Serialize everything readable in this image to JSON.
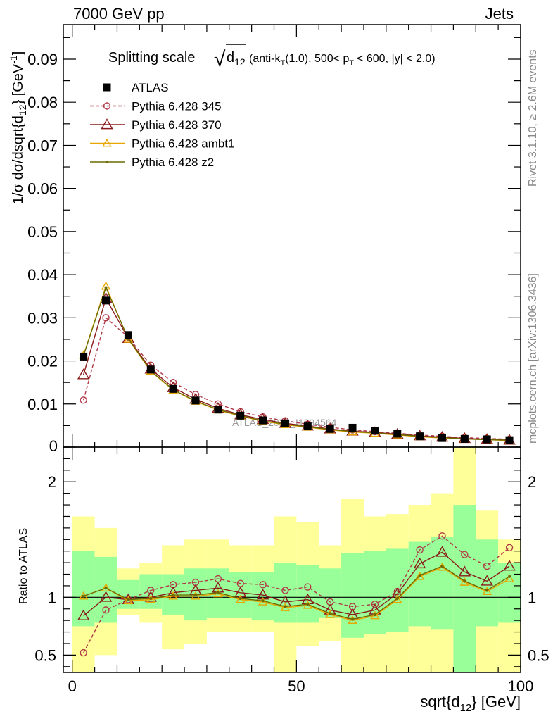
{
  "header": {
    "left": "7000 GeV pp",
    "right": "Jets"
  },
  "side_texts": {
    "top": "Rivet 3.1.10, ≥ 2.6M events",
    "bottom": "mcplots.cern.ch [arXiv:1306.3436]"
  },
  "watermark": "ATLAS_2013_I1094564",
  "chart_data": {
    "type": "line",
    "title": {
      "main": "Splitting scale",
      "sqrt_symbol": "√",
      "sqrt_text": "d",
      "sqrt_sub": "12",
      "rest_1": "(anti-k",
      "rest_1_sub": "T",
      "rest_2": "(1.0), 500< p",
      "rest_2_sub": "T",
      "rest_3": "< 600, |y| < 2.0)"
    },
    "xlabel": {
      "main": "sqrt{d",
      "sub": "12",
      "suffix": "} [GeV]"
    },
    "ylabel": {
      "p1": "1/σ dσ/dsqrt{d",
      "sub": "12",
      "p2": "} [GeV",
      "sup": "-1",
      "p3": "]"
    },
    "ratio_ylabel": "Ratio to ATLAS",
    "xlim": [
      -2,
      100
    ],
    "ylim": [
      0,
      0.098
    ],
    "ratio_ylim": [
      0.35,
      2.3
    ],
    "x_ticks": [
      0,
      50,
      100
    ],
    "y_ticks": [
      0.01,
      0.02,
      0.03,
      0.04,
      0.05,
      0.06,
      0.07,
      0.08,
      0.09
    ],
    "y_tick_labels": [
      "0.01",
      "0.02",
      "0.03",
      "0.04",
      "0.05",
      "0.06",
      "0.07",
      "0.08",
      "0.09"
    ],
    "y_zero_label": "0",
    "ratio_ticks": [
      0.5,
      1,
      2
    ],
    "ratio_tick_labels": [
      "0.5",
      "1",
      "2"
    ],
    "x": [
      2.5,
      7.5,
      12.5,
      17.5,
      22.5,
      27.5,
      32.5,
      37.5,
      42.5,
      47.5,
      52.5,
      57.5,
      62.5,
      67.5,
      72.5,
      77.5,
      82.5,
      87.5,
      92.5,
      97.5
    ],
    "data": {
      "name": "ATLAS",
      "values": [
        0.021,
        0.034,
        0.026,
        0.018,
        0.0135,
        0.0108,
        0.0087,
        0.0073,
        0.0062,
        0.0055,
        0.0048,
        0.0042,
        0.0045,
        0.0038,
        0.0031,
        0.0025,
        0.0021,
        0.0019,
        0.0018,
        0.0016
      ]
    },
    "bands": {
      "inner": [
        [
          0.75,
          1.4
        ],
        [
          0.78,
          1.35
        ],
        [
          0.9,
          1.15
        ],
        [
          0.9,
          1.2
        ],
        [
          0.85,
          1.2
        ],
        [
          0.8,
          1.25
        ],
        [
          0.82,
          1.25
        ],
        [
          0.82,
          1.22
        ],
        [
          0.8,
          1.22
        ],
        [
          0.78,
          1.3
        ],
        [
          0.78,
          1.28
        ],
        [
          0.82,
          1.25
        ],
        [
          0.65,
          1.38
        ],
        [
          0.68,
          1.4
        ],
        [
          0.7,
          1.42
        ],
        [
          0.75,
          1.48
        ],
        [
          0.72,
          1.52
        ],
        [
          0.35,
          1.8
        ],
        [
          0.75,
          1.5
        ],
        [
          0.78,
          1.3
        ]
      ],
      "outer": [
        [
          0.35,
          1.7
        ],
        [
          0.5,
          1.6
        ],
        [
          0.85,
          1.25
        ],
        [
          0.78,
          1.3
        ],
        [
          0.55,
          1.45
        ],
        [
          0.6,
          1.5
        ],
        [
          0.7,
          1.5
        ],
        [
          0.7,
          1.45
        ],
        [
          0.7,
          1.45
        ],
        [
          0.35,
          1.7
        ],
        [
          0.58,
          1.65
        ],
        [
          0.62,
          1.45
        ],
        [
          0.35,
          1.85
        ],
        [
          0.35,
          1.7
        ],
        [
          0.35,
          1.72
        ],
        [
          0.35,
          1.8
        ],
        [
          0.35,
          1.9
        ],
        [
          0.35,
          2.3
        ],
        [
          0.35,
          1.75
        ],
        [
          0.35,
          1.5
        ]
      ]
    },
    "series": [
      {
        "name": "Pythia 6.428 345",
        "color": "#b03a48",
        "dashed": true,
        "marker": "circle",
        "values": [
          0.0109,
          0.03,
          0.0255,
          0.019,
          0.015,
          0.0122,
          0.01,
          0.0082,
          0.007,
          0.0061,
          0.0053,
          0.0046,
          0.004,
          0.0036,
          0.0032,
          0.0028,
          0.0025,
          0.0022,
          0.002,
          0.0018
        ],
        "ratio": [
          0.52,
          0.89,
          0.98,
          1.06,
          1.11,
          1.13,
          1.16,
          1.12,
          1.11,
          1.06,
          1.09,
          0.96,
          0.92,
          0.94,
          1.05,
          1.41,
          1.53,
          1.37,
          1.27,
          1.43
        ]
      },
      {
        "name": "Pythia 6.428 370",
        "color": "#8b1a1a",
        "dashed": false,
        "marker": "triangle",
        "values": [
          0.0168,
          0.0345,
          0.0252,
          0.0181,
          0.0138,
          0.0111,
          0.009,
          0.0075,
          0.0064,
          0.0055,
          0.0049,
          0.0042,
          0.0037,
          0.0034,
          0.003,
          0.0026,
          0.0023,
          0.002,
          0.0018,
          0.0016
        ],
        "ratio": [
          0.84,
          1.0,
          0.98,
          1.0,
          1.04,
          1.06,
          1.08,
          1.04,
          1.02,
          0.96,
          0.98,
          0.89,
          0.85,
          0.89,
          1.03,
          1.29,
          1.39,
          1.22,
          1.14,
          1.27
        ]
      },
      {
        "name": "Pythia 6.428 ambt1",
        "color": "#e8a600",
        "dashed": false,
        "marker": "triangle-small",
        "values": [
          0.0213,
          0.0373,
          0.025,
          0.0176,
          0.0132,
          0.0106,
          0.0086,
          0.0072,
          0.006,
          0.0052,
          0.0046,
          0.004,
          0.0035,
          0.0032,
          0.0028,
          0.0024,
          0.0021,
          0.0019,
          0.0017,
          0.0015
        ],
        "ratio": [
          1.01,
          1.08,
          0.97,
          0.98,
          1.01,
          1.01,
          1.03,
          0.98,
          0.96,
          0.91,
          0.93,
          0.85,
          0.8,
          0.84,
          0.98,
          1.18,
          1.26,
          1.13,
          1.05,
          1.16
        ]
      },
      {
        "name": "Pythia 6.428 z2",
        "color": "#6b6b00",
        "dashed": false,
        "marker": "dot",
        "values": [
          0.0212,
          0.037,
          0.0251,
          0.0177,
          0.0133,
          0.0107,
          0.0087,
          0.0073,
          0.0061,
          0.0053,
          0.0047,
          0.0041,
          0.0036,
          0.0033,
          0.0029,
          0.0025,
          0.0022,
          0.0019,
          0.0017,
          0.0016
        ],
        "ratio": [
          1.01,
          1.08,
          0.98,
          0.99,
          1.02,
          1.02,
          1.04,
          0.99,
          0.97,
          0.92,
          0.94,
          0.86,
          0.81,
          0.85,
          0.99,
          1.19,
          1.27,
          1.14,
          1.06,
          1.18
        ]
      }
    ],
    "colors": {
      "inner_band": "#99ff99",
      "outer_band": "#ffff99",
      "ratio_line": "#000000"
    }
  }
}
